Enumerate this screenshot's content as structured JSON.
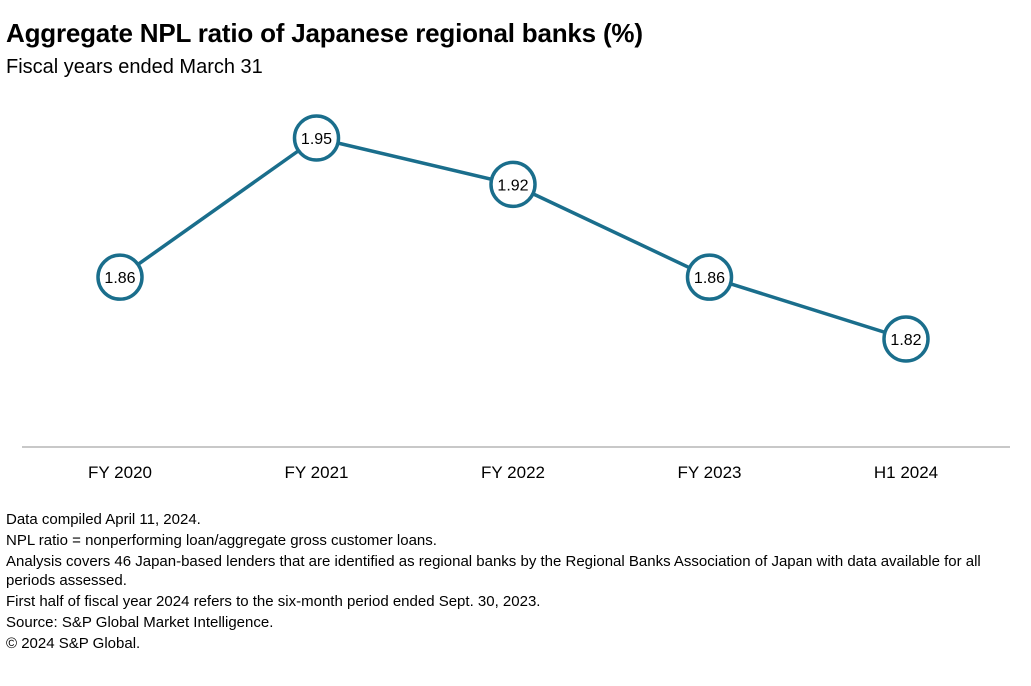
{
  "header": {
    "title": "Aggregate NPL ratio of Japanese regional banks (%)",
    "subtitle": "Fiscal years ended March 31"
  },
  "chart_data": {
    "type": "line",
    "title": "Aggregate NPL ratio of Japanese regional banks (%)",
    "subtitle": "Fiscal years ended March 31",
    "categories": [
      "FY 2020",
      "FY 2021",
      "FY 2022",
      "FY 2023",
      "H1 2024"
    ],
    "series": [
      {
        "values": [
          1.86,
          1.95,
          1.92,
          1.86,
          1.82
        ],
        "labels": [
          "1.86",
          "1.95",
          "1.92",
          "1.86",
          "1.82"
        ],
        "color": "#1a6e8c"
      }
    ],
    "grid": false,
    "legend": "none",
    "axis_color": "#c8c8c8"
  },
  "notes": [
    "Data compiled April 11, 2024.",
    "NPL ratio = nonperforming loan/aggregate gross customer loans.",
    "Analysis covers 46 Japan-based lenders that are identified as regional banks by the Regional Banks Association of Japan with data available for all periods assessed.",
    "First half of fiscal year 2024 refers to the six-month period ended Sept. 30, 2023.",
    "Source: S&P Global Market Intelligence.",
    "© 2024 S&P Global."
  ]
}
